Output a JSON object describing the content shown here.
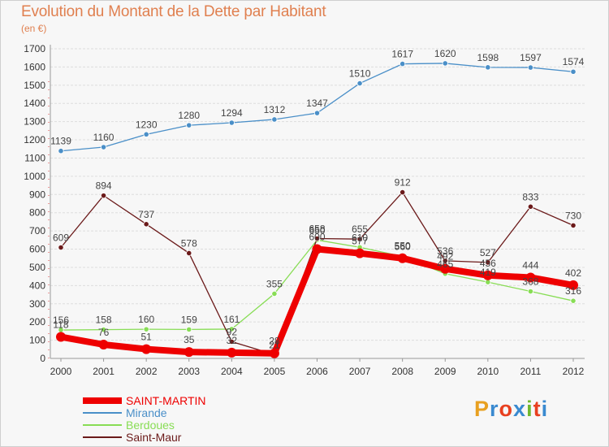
{
  "chart_data": {
    "type": "line",
    "title": "Evolution du Montant de la Dette par Habitant",
    "subtitle": "(en €)",
    "x": [
      "2000",
      "2001",
      "2002",
      "2003",
      "2004",
      "2005",
      "2006",
      "2007",
      "2008",
      "2009",
      "2010",
      "2011",
      "2012"
    ],
    "ylim": [
      0,
      1700
    ],
    "yticks": [
      0,
      100,
      200,
      300,
      400,
      500,
      600,
      700,
      800,
      900,
      1000,
      1100,
      1200,
      1300,
      1400,
      1500,
      1600,
      1700
    ],
    "grid": "horizontal",
    "legend_position": "bottom-left",
    "series": [
      {
        "name": "SAINT-MARTIN",
        "color": "#ee0000",
        "values": [
          118,
          76,
          51,
          35,
          32,
          28,
          600,
          577,
          550,
          492,
          456,
          444,
          402
        ]
      },
      {
        "name": "Mirande",
        "color": "#4a8fc8",
        "values": [
          1139,
          1160,
          1230,
          1280,
          1294,
          1312,
          1347,
          1510,
          1617,
          1620,
          1598,
          1597,
          1574
        ]
      },
      {
        "name": "Berdoues",
        "color": "#88dd55",
        "values": [
          156,
          158,
          160,
          159,
          161,
          355,
          650,
          610,
          560,
          465,
          419,
          368,
          316
        ]
      },
      {
        "name": "Saint-Maur",
        "color": "#6b1a1a",
        "values": [
          609,
          894,
          737,
          578,
          92,
          21,
          658,
          655,
          912,
          536,
          527,
          833,
          730
        ]
      }
    ]
  },
  "logo": {
    "text": "Proxiti",
    "letters": [
      "P",
      "r",
      "o",
      "x",
      "i",
      "t",
      "i"
    ],
    "colors": [
      "#e8a020",
      "#3a8ad0",
      "#e84020",
      "#3a8ad0",
      "#70b830",
      "#e84020",
      "#3a8ad0"
    ]
  }
}
